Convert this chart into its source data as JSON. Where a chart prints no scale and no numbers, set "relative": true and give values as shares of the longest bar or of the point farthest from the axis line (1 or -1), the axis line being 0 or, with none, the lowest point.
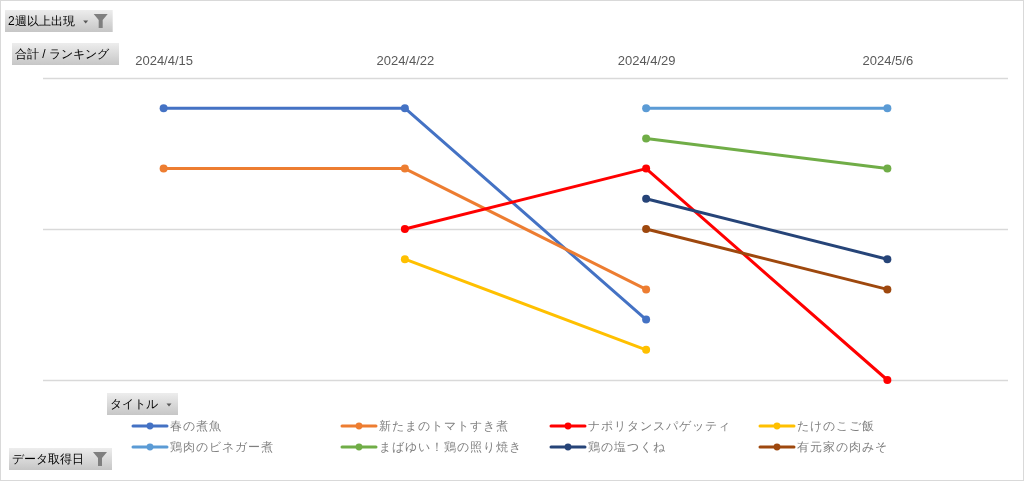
{
  "chart_data": {
    "type": "line",
    "relative": true,
    "annotations": [
      "2週以上出現",
      "データ取得日"
    ],
    "ylabel": "合計 / ランキング",
    "legend_title": "タイトル",
    "categories": [
      "2024/4/15",
      "2024/4/22",
      "2024/4/29",
      "2024/5/6"
    ],
    "series": [
      {
        "name": "春の煮魚",
        "color": "#4472c4",
        "values": [
          -0.1,
          -0.1,
          -0.8,
          null
        ]
      },
      {
        "name": "新たまのトマトすき煮",
        "color": "#ed7d31",
        "values": [
          -0.3,
          -0.3,
          -0.7,
          null
        ]
      },
      {
        "name": "ナポリタンスパゲッティ",
        "color": "#ff0000",
        "values": [
          null,
          -0.5,
          -0.3,
          -1
        ]
      },
      {
        "name": "たけのこご飯",
        "color": "#ffc000",
        "values": [
          null,
          -0.6,
          -0.9,
          null
        ]
      },
      {
        "name": "鶏肉のビネガー煮",
        "color": "#5b9bd5",
        "values": [
          null,
          null,
          -0.1,
          -0.1
        ]
      },
      {
        "name": "まばゆい！鶏の照り焼き",
        "color": "#70ad47",
        "values": [
          null,
          null,
          -0.2,
          -0.3
        ]
      },
      {
        "name": "鶏の塩つくね",
        "color": "#264478",
        "values": [
          null,
          null,
          -0.4,
          -0.6
        ]
      },
      {
        "name": "有元家の肉みそ",
        "color": "#9e480e",
        "values": [
          null,
          null,
          -0.5,
          -0.7
        ]
      }
    ],
    "ref_lines": [
      {
        "axis": "y",
        "value": -0.5,
        "color": "#d9d9d9"
      },
      {
        "axis": "y",
        "value": -1,
        "color": "#d9d9d9"
      }
    ],
    "legend": "bottom",
    "marker": "circle",
    "line_style": "solid"
  }
}
